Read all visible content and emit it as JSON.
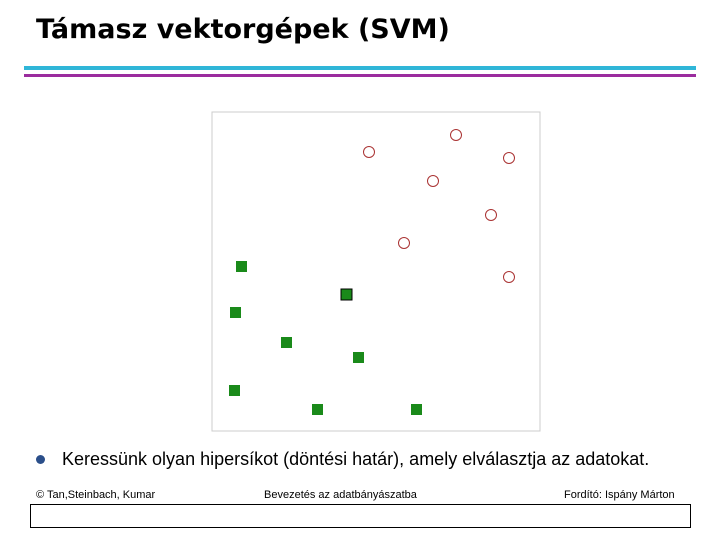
{
  "slide": {
    "title": "Támasz vektorgépek (SVM)",
    "bullets": [
      "Keressünk olyan hipersíkot (döntési határ), amely elválasztja az adatokat."
    ],
    "footer": {
      "left": "© Tan,Steinbach, Kumar",
      "center": "Bevezetés az adatbányászatba",
      "right": "Fordító: Ispány Márton"
    }
  }
}
